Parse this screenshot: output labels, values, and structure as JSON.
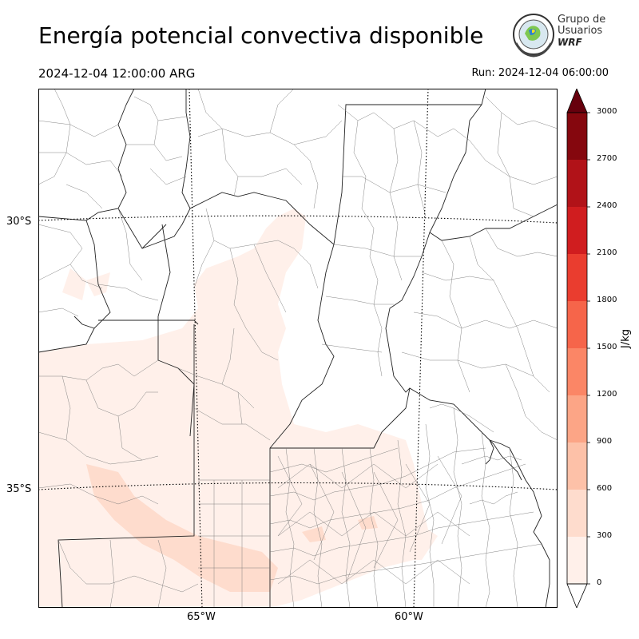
{
  "title": "Energía potencial convectiva disponible",
  "valid_time": "2024-12-04 12:00:00 ARG",
  "run_time": "Run: 2024-12-04 06:00:00",
  "logo": {
    "line1": "Grupo de",
    "line2": "Usuarios",
    "line3": "WRF"
  },
  "graticule": {
    "lat_labels": [
      "30°S",
      "35°S"
    ],
    "lon_labels": [
      "65°W",
      "60°W"
    ]
  },
  "colorbar": {
    "unit": "J/kg",
    "ticks": [
      "0",
      "300",
      "600",
      "900",
      "1200",
      "1500",
      "1800",
      "2100",
      "2400",
      "2700",
      "3000"
    ],
    "colors": [
      "#fff0ea",
      "#fedccd",
      "#fdc1a8",
      "#fca586",
      "#fb8666",
      "#f6654a",
      "#ea3d2f",
      "#d01d1f",
      "#b11218",
      "#85070e"
    ],
    "extend": "both",
    "over_color": "#67000d",
    "under_color": "#ffffff"
  }
}
